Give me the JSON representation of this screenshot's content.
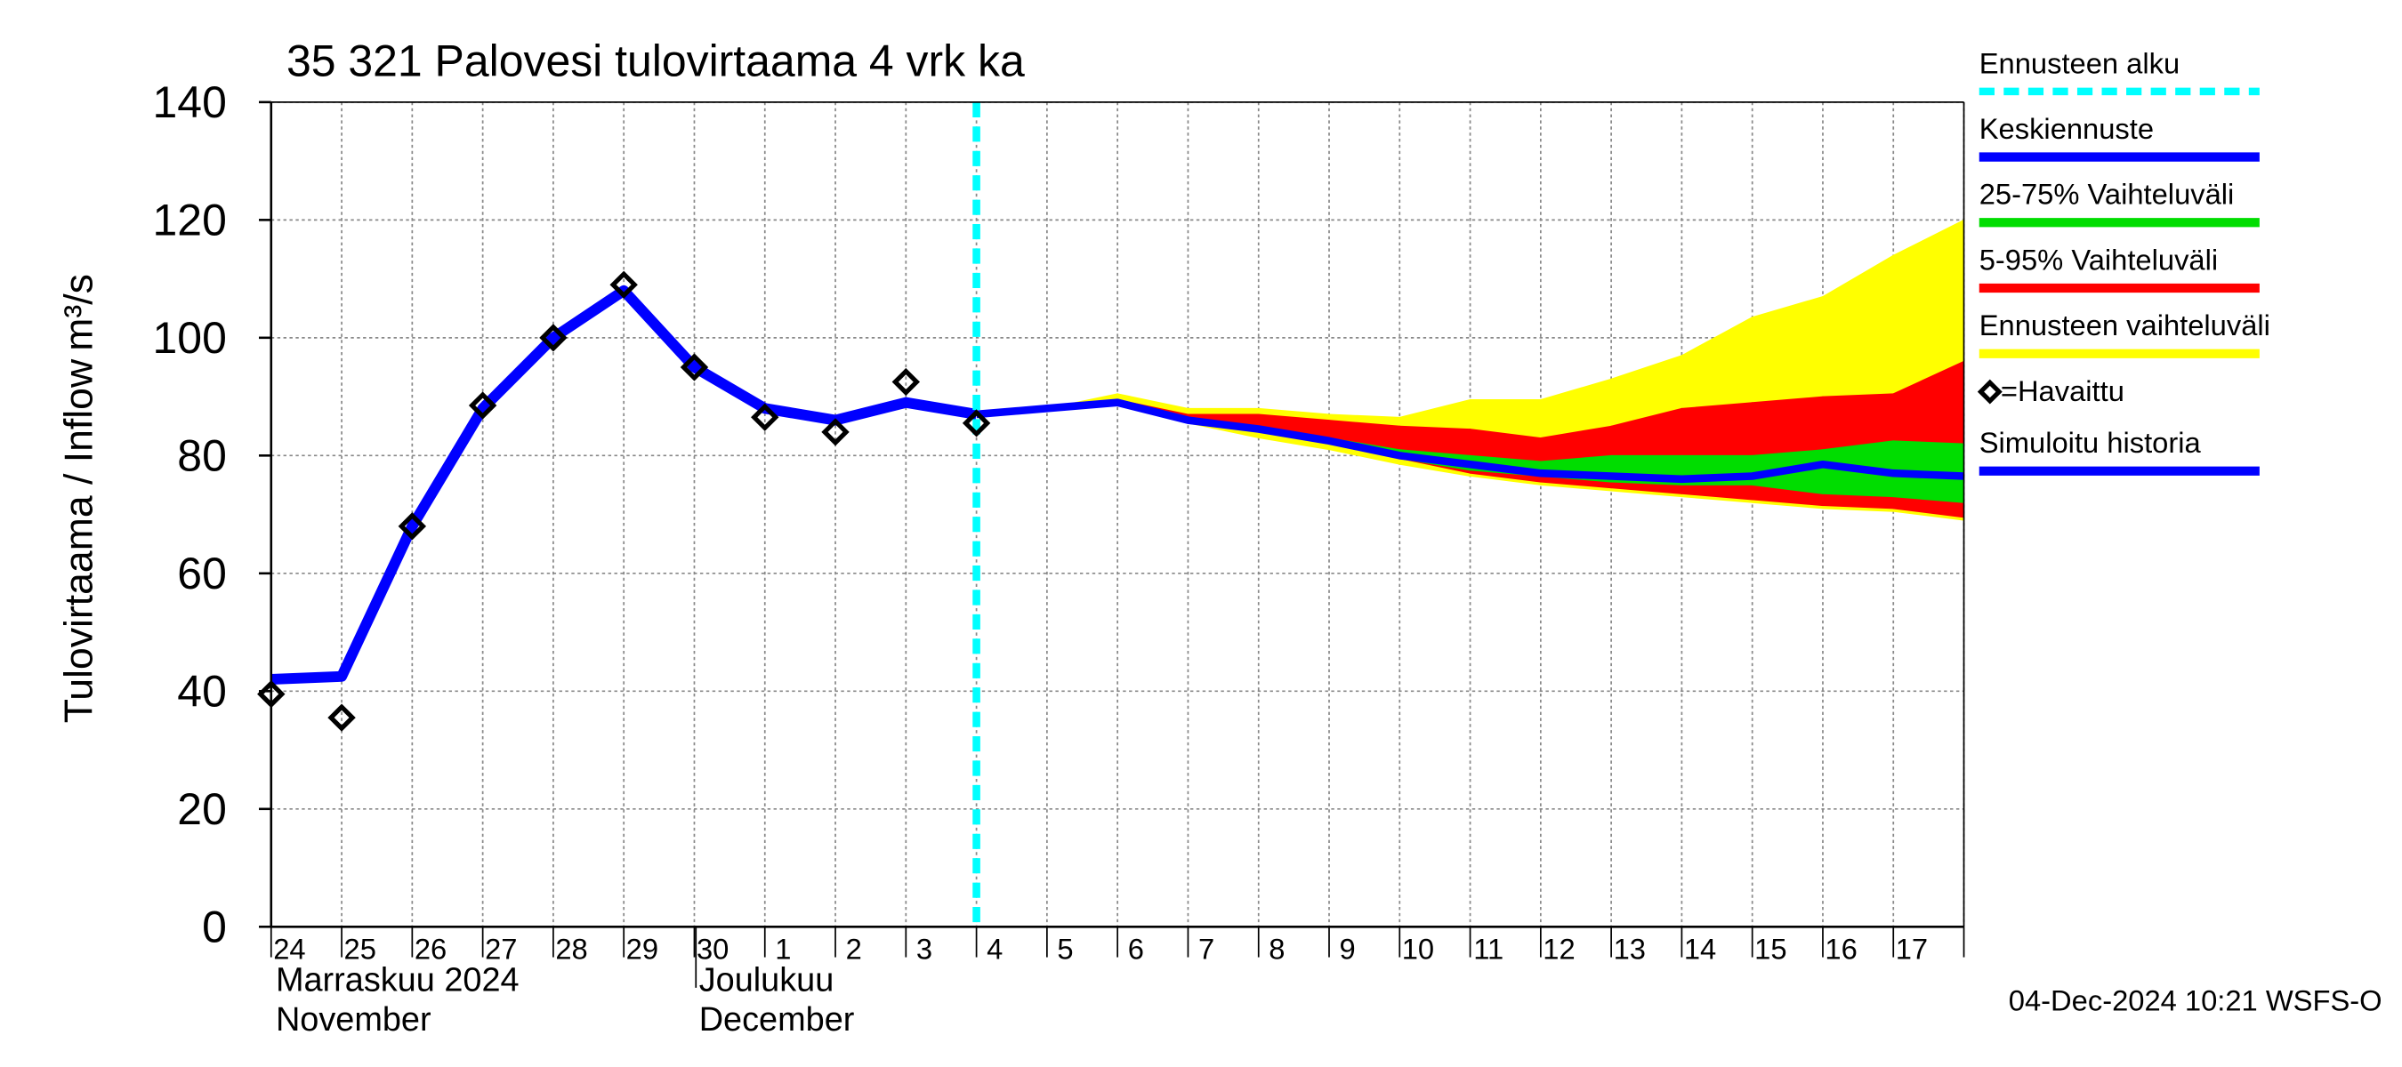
{
  "chart_data": {
    "type": "line",
    "title": "35 321 Palovesi tulovirtaama 4 vrk ka",
    "y_label": "Tulovirtaama / Inflow",
    "y_unit": "m³/s",
    "footer": "04-Dec-2024 10:21 WSFS-O",
    "categories": [
      "24",
      "25",
      "26",
      "27",
      "28",
      "29",
      "30",
      "1",
      "2",
      "3",
      "4",
      "5",
      "6",
      "7",
      "8",
      "9",
      "10",
      "11",
      "12",
      "13",
      "14",
      "15",
      "16",
      "17",
      null
    ],
    "months": [
      {
        "name": "Marraskuu 2024",
        "name_en": "November"
      },
      {
        "name": "Joulukuu",
        "name_en": "December"
      }
    ],
    "ylim": [
      0,
      140
    ],
    "yticks": [
      0,
      20,
      40,
      60,
      80,
      100,
      120,
      140
    ],
    "grid": true,
    "forecast_start": {
      "name": "Ennusteen alku",
      "category": "4",
      "color": "#00ffff"
    },
    "bands": [
      {
        "name": "Ennusteen vaihteluväli",
        "color": "#ffff00",
        "upper": [
          null,
          null,
          null,
          null,
          null,
          null,
          null,
          null,
          null,
          null,
          null,
          88,
          90.5,
          88,
          88,
          87,
          86.5,
          89.5,
          89.5,
          93,
          97,
          103.5,
          107,
          114,
          120
        ],
        "lower": [
          null,
          null,
          null,
          null,
          null,
          null,
          null,
          null,
          null,
          null,
          null,
          88,
          89,
          85.5,
          83,
          81,
          78.5,
          76.5,
          75,
          74,
          73,
          72,
          71,
          70.5,
          69
        ]
      },
      {
        "name": "5-95% Vaihteluväli",
        "color": "#ff0000",
        "upper": [
          null,
          null,
          null,
          null,
          null,
          null,
          null,
          null,
          null,
          null,
          null,
          88,
          89.5,
          87,
          87,
          86,
          85,
          84.5,
          83,
          85,
          88,
          89,
          90,
          90.5,
          96
        ],
        "lower": [
          null,
          null,
          null,
          null,
          null,
          null,
          null,
          null,
          null,
          null,
          null,
          88,
          89,
          86,
          84,
          82,
          79.5,
          77,
          75.5,
          74.5,
          73.5,
          72.5,
          71.5,
          71,
          69.5
        ]
      },
      {
        "name": "25-75% Vaihteluväli",
        "color": "#00dd00",
        "upper": [
          null,
          null,
          null,
          null,
          null,
          null,
          null,
          null,
          null,
          null,
          null,
          null,
          null,
          86.5,
          85,
          83,
          81,
          80,
          79,
          80,
          80,
          80,
          81,
          82.5,
          82
        ],
        "lower": [
          null,
          null,
          null,
          null,
          null,
          null,
          null,
          null,
          null,
          null,
          null,
          null,
          null,
          86,
          84,
          82,
          79.5,
          77.5,
          76.5,
          75.5,
          75,
          75,
          73.5,
          73,
          72
        ]
      }
    ],
    "series": [
      {
        "name": "Simuloitu historia",
        "color": "#0000ff",
        "values": [
          42,
          42.5,
          68,
          88,
          100,
          108,
          95,
          88,
          86,
          89,
          87,
          null,
          null,
          null,
          null,
          null,
          null,
          null,
          null,
          null,
          null,
          null,
          null,
          null,
          null
        ]
      },
      {
        "name": "Keskiennuste",
        "color": "#0000ff",
        "values": [
          null,
          null,
          null,
          null,
          null,
          null,
          null,
          null,
          null,
          null,
          87,
          88,
          89,
          86,
          84.5,
          82.5,
          80,
          78.5,
          77,
          76.5,
          76,
          76.5,
          78.5,
          77,
          76.5
        ]
      }
    ],
    "observed": {
      "name": "=Havaittu",
      "color": "#000000",
      "values": [
        39.5,
        35.5,
        68,
        88.5,
        100,
        109,
        95,
        86.5,
        84,
        92.5,
        85.5,
        null,
        null,
        null,
        null,
        null,
        null,
        null,
        null,
        null,
        null,
        null,
        null,
        null,
        null
      ]
    }
  }
}
